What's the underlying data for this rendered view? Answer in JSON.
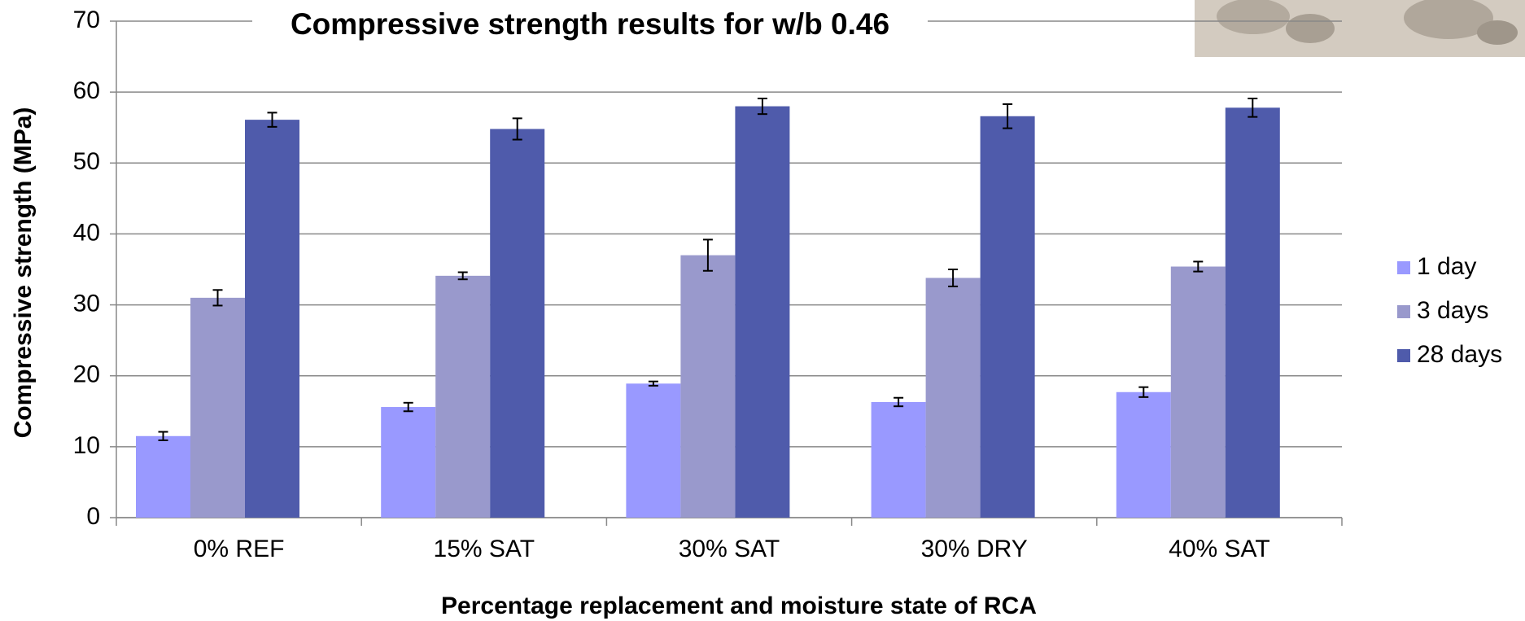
{
  "chart_data": {
    "type": "bar",
    "title": "Compressive strength results for w/b 0.46",
    "x_label": "Percentage replacement and moisture state of RCA",
    "y_label": "Compressive strength (MPa)",
    "categories": [
      "0% REF",
      "15% SAT",
      "30% SAT",
      "30% DRY",
      "40% SAT"
    ],
    "series": [
      {
        "name": "1 day",
        "color": "#9999ff",
        "values": [
          11.5,
          15.6,
          18.9,
          16.3,
          17.7
        ],
        "errors": [
          0.6,
          0.6,
          0.3,
          0.6,
          0.7
        ]
      },
      {
        "name": "3 days",
        "color": "#9999cc",
        "values": [
          31,
          34.1,
          37,
          33.8,
          35.4
        ],
        "errors": [
          1.1,
          0.5,
          2.2,
          1.2,
          0.7
        ]
      },
      {
        "name": "28 days",
        "color": "#4f5bab",
        "values": [
          56.1,
          54.8,
          58,
          56.6,
          57.8
        ],
        "errors": [
          1.0,
          1.5,
          1.1,
          1.7,
          1.3
        ]
      }
    ],
    "ylim": [
      0,
      70
    ],
    "yticks": [
      0,
      10,
      20,
      30,
      40,
      50,
      60,
      70
    ],
    "grid": true,
    "legend": "right"
  }
}
